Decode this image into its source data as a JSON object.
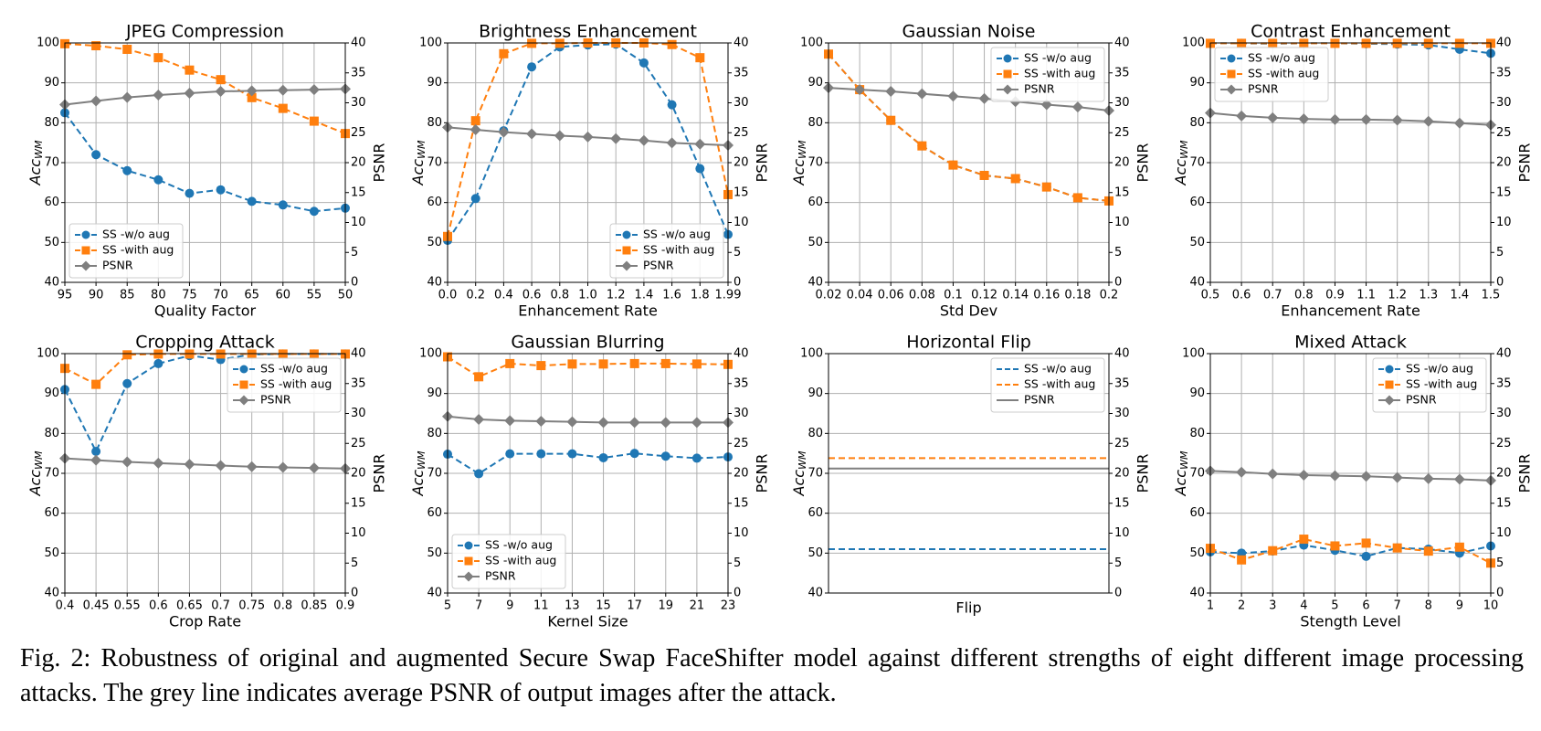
{
  "chart_data": [
    {
      "type": "line",
      "title": "JPEG Compression",
      "xlabel": "Quality Factor",
      "ylabel": {
        "text": "Acc",
        "subscript": "WM"
      },
      "y2label": "PSNR",
      "categories": [
        "95",
        "90",
        "85",
        "80",
        "75",
        "70",
        "65",
        "60",
        "55",
        "50"
      ],
      "series": [
        {
          "name": "SS -w/o aug",
          "color": "#1f77b4",
          "marker": "o",
          "dash": true,
          "values": [
            82.5,
            72,
            68,
            65.7,
            62.3,
            63.2,
            60.3,
            59.4,
            57.8,
            58.6
          ]
        },
        {
          "name": "SS -with aug",
          "color": "#ff7f0e",
          "marker": "s",
          "dash": true,
          "values": [
            99.8,
            99.3,
            98.4,
            96.3,
            93.2,
            90.8,
            86.3,
            83.6,
            80.4,
            77.3
          ]
        },
        {
          "name": "PSNR",
          "color": "#7f7f7f",
          "marker": "D",
          "dash": false,
          "axis": "y2",
          "values": [
            29.7,
            30.3,
            30.9,
            31.3,
            31.6,
            31.9,
            32.0,
            32.1,
            32.2,
            32.3
          ]
        }
      ],
      "ylim": [
        40,
        100
      ],
      "yticks": [
        40,
        50,
        60,
        70,
        80,
        90,
        100
      ],
      "y2lim": [
        0,
        40
      ],
      "y2ticks": [
        0,
        5,
        10,
        15,
        20,
        25,
        30,
        35,
        40
      ],
      "grid": true,
      "legend": "lower left"
    },
    {
      "type": "line",
      "title": "Brightness Enhancement",
      "xlabel": "Enhancement Rate",
      "ylabel": {
        "text": "Acc",
        "subscript": "WM"
      },
      "y2label": "PSNR",
      "categories": [
        "0.0",
        "0.2",
        "0.4",
        "0.6",
        "0.8",
        "1.0",
        "1.2",
        "1.4",
        "1.6",
        "1.8",
        "1.99"
      ],
      "series": [
        {
          "name": "SS -w/o aug",
          "color": "#1f77b4",
          "marker": "o",
          "dash": true,
          "values": [
            50.5,
            61,
            78,
            94,
            99,
            99.5,
            99.7,
            95,
            84.5,
            68.5,
            52
          ]
        },
        {
          "name": "SS -with aug",
          "color": "#ff7f0e",
          "marker": "s",
          "dash": true,
          "values": [
            51.5,
            80.5,
            97.3,
            99.9,
            99.9,
            100,
            100,
            100,
            99.6,
            96.3,
            62
          ]
        },
        {
          "name": "PSNR",
          "color": "#7f7f7f",
          "marker": "D",
          "dash": false,
          "axis": "y2",
          "values": [
            25.9,
            25.5,
            25.1,
            24.8,
            24.5,
            24.3,
            24.0,
            23.7,
            23.3,
            23.1,
            22.9
          ]
        }
      ],
      "ylim": [
        40,
        100
      ],
      "yticks": [
        40,
        50,
        60,
        70,
        80,
        90,
        100
      ],
      "y2lim": [
        0,
        40
      ],
      "y2ticks": [
        0,
        5,
        10,
        15,
        20,
        25,
        30,
        35,
        40
      ],
      "grid": true,
      "legend": "lower right"
    },
    {
      "type": "line",
      "title": "Gaussian Noise",
      "xlabel": "Std Dev",
      "ylabel": {
        "text": "Acc",
        "subscript": "WM"
      },
      "y2label": "PSNR",
      "categories": [
        "0.02",
        "0.04",
        "0.06",
        "0.08",
        "0.1",
        "0.12",
        "0.14",
        "0.16",
        "0.18",
        "0.2"
      ],
      "series": [
        {
          "name": "SS -w/o aug",
          "color": "#1f77b4",
          "marker": "o",
          "dash": true,
          "values": [
            97.2,
            88.3,
            80.6,
            74.2,
            69.4,
            66.8,
            66.0,
            63.9,
            61.2,
            60.4
          ]
        },
        {
          "name": "SS -with aug",
          "color": "#ff7f0e",
          "marker": "s",
          "dash": true,
          "values": [
            97.2,
            88.3,
            80.6,
            74.2,
            69.4,
            66.8,
            66.0,
            63.9,
            61.2,
            60.4
          ]
        },
        {
          "name": "PSNR",
          "color": "#7f7f7f",
          "marker": "D",
          "dash": false,
          "axis": "y2",
          "values": [
            32.5,
            32.2,
            31.9,
            31.5,
            31.1,
            30.7,
            30.2,
            29.7,
            29.3,
            28.7
          ]
        }
      ],
      "ylim": [
        40,
        100
      ],
      "yticks": [
        40,
        50,
        60,
        70,
        80,
        90,
        100
      ],
      "y2lim": [
        0,
        40
      ],
      "y2ticks": [
        0,
        5,
        10,
        15,
        20,
        25,
        30,
        35,
        40
      ],
      "grid": true,
      "legend": "upper right"
    },
    {
      "type": "line",
      "title": "Contrast Enhancement",
      "xlabel": "Enhancement Rate",
      "ylabel": {
        "text": "Acc",
        "subscript": "WM"
      },
      "y2label": "PSNR",
      "categories": [
        "0.5",
        "0.6",
        "0.7",
        "0.8",
        "0.9",
        "1.1",
        "1.2",
        "1.3",
        "1.4",
        "1.5"
      ],
      "series": [
        {
          "name": "SS -w/o aug",
          "color": "#1f77b4",
          "marker": "o",
          "dash": true,
          "values": [
            99.9,
            99.9,
            99.8,
            99.9,
            99.9,
            99.8,
            99.7,
            99.5,
            98.4,
            97.4
          ]
        },
        {
          "name": "SS -with aug",
          "color": "#ff7f0e",
          "marker": "s",
          "dash": true,
          "values": [
            99.9,
            99.9,
            99.9,
            99.9,
            99.9,
            99.9,
            99.9,
            99.9,
            99.9,
            99.9
          ]
        },
        {
          "name": "PSNR",
          "color": "#7f7f7f",
          "marker": "D",
          "dash": false,
          "axis": "y2",
          "values": [
            28.3,
            27.8,
            27.5,
            27.3,
            27.2,
            27.2,
            27.1,
            26.9,
            26.6,
            26.3
          ]
        }
      ],
      "ylim": [
        40,
        100
      ],
      "yticks": [
        40,
        50,
        60,
        70,
        80,
        90,
        100
      ],
      "y2lim": [
        0,
        40
      ],
      "y2ticks": [
        0,
        5,
        10,
        15,
        20,
        25,
        30,
        35,
        40
      ],
      "grid": true,
      "legend": "upper left"
    },
    {
      "type": "line",
      "title": "Cropping Attack",
      "xlabel": "Crop Rate",
      "ylabel": {
        "text": "Acc",
        "subscript": "WM"
      },
      "y2label": "PSNR",
      "categories": [
        "0.4",
        "0.45",
        "0.55",
        "0.6",
        "0.65",
        "0.7",
        "0.75",
        "0.8",
        "0.85",
        "0.9"
      ],
      "series": [
        {
          "name": "SS -w/o aug",
          "color": "#1f77b4",
          "marker": "o",
          "dash": true,
          "values": [
            91,
            75.5,
            92.5,
            97.5,
            99.5,
            98.5,
            99.8,
            99.9,
            99.9,
            99.9
          ]
        },
        {
          "name": "SS -with aug",
          "color": "#ff7f0e",
          "marker": "s",
          "dash": true,
          "values": [
            96.3,
            92.3,
            99.7,
            99.9,
            99.9,
            99.9,
            99.9,
            99.9,
            99.9,
            99.9
          ]
        },
        {
          "name": "PSNR",
          "color": "#7f7f7f",
          "marker": "D",
          "dash": false,
          "axis": "y2",
          "values": [
            22.5,
            22.2,
            21.9,
            21.7,
            21.5,
            21.3,
            21.1,
            21.0,
            20.9,
            20.8
          ]
        }
      ],
      "ylim": [
        40,
        100
      ],
      "yticks": [
        40,
        50,
        60,
        70,
        80,
        90,
        100
      ],
      "y2lim": [
        0,
        40
      ],
      "y2ticks": [
        0,
        5,
        10,
        15,
        20,
        25,
        30,
        35,
        40
      ],
      "grid": true,
      "legend": "upper right"
    },
    {
      "type": "line",
      "title": "Gaussian Blurring",
      "xlabel": "Kernel Size",
      "ylabel": {
        "text": "Acc",
        "subscript": "WM"
      },
      "y2label": "PSNR",
      "categories": [
        "5",
        "7",
        "9",
        "11",
        "13",
        "15",
        "17",
        "19",
        "21",
        "23"
      ],
      "series": [
        {
          "name": "SS -w/o aug",
          "color": "#1f77b4",
          "marker": "o",
          "dash": true,
          "values": [
            74.8,
            69.9,
            74.9,
            74.9,
            74.9,
            73.9,
            75.0,
            74.3,
            73.8,
            74.1
          ]
        },
        {
          "name": "SS -with aug",
          "color": "#ff7f0e",
          "marker": "s",
          "dash": true,
          "values": [
            99.2,
            94.2,
            97.5,
            97.0,
            97.4,
            97.4,
            97.5,
            97.5,
            97.4,
            97.3
          ]
        },
        {
          "name": "PSNR",
          "color": "#7f7f7f",
          "marker": "D",
          "dash": false,
          "axis": "y2",
          "values": [
            29.5,
            29.0,
            28.8,
            28.7,
            28.6,
            28.5,
            28.5,
            28.5,
            28.5,
            28.5
          ]
        }
      ],
      "ylim": [
        40,
        100
      ],
      "yticks": [
        40,
        50,
        60,
        70,
        80,
        90,
        100
      ],
      "y2lim": [
        0,
        40
      ],
      "y2ticks": [
        0,
        5,
        10,
        15,
        20,
        25,
        30,
        35,
        40
      ],
      "grid": true,
      "legend": "lower left"
    },
    {
      "type": "hline",
      "title": "Horizontal Flip",
      "xlabel": "Flip",
      "ylabel": {
        "text": "Acc",
        "subscript": "WM"
      },
      "y2label": "PSNR",
      "series": [
        {
          "name": "SS -w/o aug",
          "color": "#1f77b4",
          "dash": true,
          "values": [
            51
          ]
        },
        {
          "name": "SS -with aug",
          "color": "#ff7f0e",
          "dash": true,
          "values": [
            73.8
          ]
        },
        {
          "name": "PSNR",
          "color": "#7f7f7f",
          "dash": false,
          "axis": "y2",
          "values": [
            20.8
          ]
        }
      ],
      "ylim": [
        40,
        100
      ],
      "yticks": [
        40,
        50,
        60,
        70,
        80,
        90,
        100
      ],
      "y2lim": [
        0,
        40
      ],
      "y2ticks": [
        0,
        5,
        10,
        15,
        20,
        25,
        30,
        35,
        40
      ],
      "grid": true,
      "legend": "upper right"
    },
    {
      "type": "line",
      "title": "Mixed Attack",
      "xlabel": "Stength Level",
      "ylabel": {
        "text": "Acc",
        "subscript": "WM"
      },
      "y2label": "PSNR",
      "categories": [
        "1",
        "2",
        "3",
        "4",
        "5",
        "6",
        "7",
        "8",
        "9",
        "10"
      ],
      "series": [
        {
          "name": "SS -w/o aug",
          "color": "#1f77b4",
          "marker": "o",
          "dash": true,
          "values": [
            50.3,
            50.0,
            50.5,
            52.0,
            50.7,
            49.2,
            51.3,
            51.0,
            50.0,
            51.8
          ]
        },
        {
          "name": "SS -with aug",
          "color": "#ff7f0e",
          "marker": "s",
          "dash": true,
          "values": [
            51.2,
            48.3,
            50.6,
            53.5,
            51.8,
            52.5,
            51.3,
            50.5,
            51.5,
            47.5
          ]
        },
        {
          "name": "PSNR",
          "color": "#7f7f7f",
          "marker": "D",
          "dash": false,
          "axis": "y2",
          "values": [
            20.4,
            20.2,
            19.9,
            19.7,
            19.6,
            19.5,
            19.3,
            19.1,
            19.0,
            18.8
          ]
        }
      ],
      "ylim": [
        40,
        100
      ],
      "yticks": [
        40,
        50,
        60,
        70,
        80,
        90,
        100
      ],
      "y2lim": [
        0,
        40
      ],
      "y2ticks": [
        0,
        5,
        10,
        15,
        20,
        25,
        30,
        35,
        40
      ],
      "grid": true,
      "legend": "upper right"
    }
  ],
  "caption": "Fig. 2: Robustness of original and augmented Secure Swap FaceShifter model against different strengths of eight different image processing attacks. The grey line indicates average PSNR of output images after the attack."
}
